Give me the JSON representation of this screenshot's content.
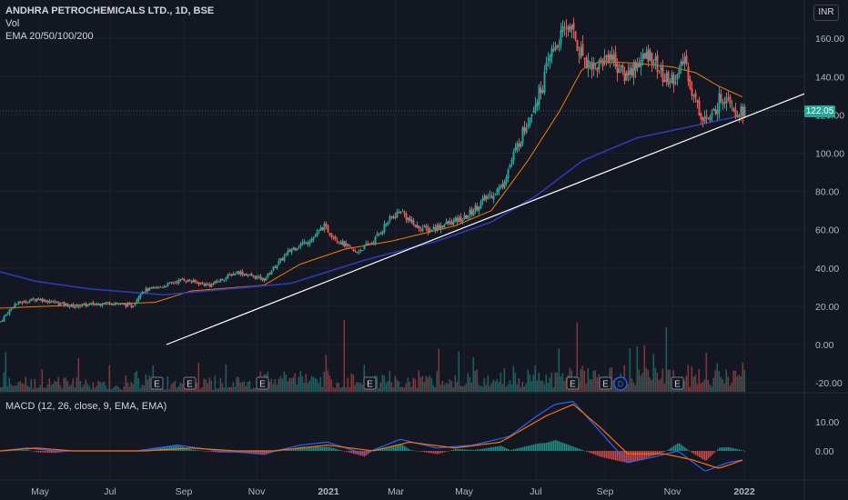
{
  "header": {
    "title": "ANDHRA PETROCHEMICALS LTD., 1D, BSE",
    "vol_label": "Vol",
    "ema_label": "EMA 20/50/100/200",
    "currency": "INR"
  },
  "last_price": "122.05",
  "macd_label": "MACD (12, 26, close, 9, EMA, EMA)",
  "colors": {
    "background": "#131722",
    "grid": "#1e222d",
    "up": "#26a69a",
    "down": "#ef5350",
    "ema_fast": "#f57c00",
    "ema_slow": "#2e39b8",
    "macd_line": "#2962ff",
    "signal_line": "#ff6d00",
    "trendline": "#ffffff"
  },
  "chart_data": [
    {
      "type": "candlestick",
      "price_axis_ticks": [
        "160.00",
        "140.00",
        "120.00",
        "100.00",
        "80.00",
        "60.00",
        "40.00",
        "20.00",
        "0.00",
        "-20.00"
      ],
      "ylim": [
        -20,
        170
      ],
      "time_axis_labels": [
        "May",
        "Jul",
        "Sep",
        "Nov",
        "2021",
        "Mar",
        "May",
        "Jul",
        "Sep",
        "Nov",
        "2022"
      ],
      "series": [
        {
          "kind": "close",
          "keyframes": [
            {
              "t": 0,
              "v": 12
            },
            {
              "t": 15,
              "v": 21
            },
            {
              "t": 40,
              "v": 24
            },
            {
              "t": 80,
              "v": 20
            },
            {
              "t": 120,
              "v": 22
            },
            {
              "t": 145,
              "v": 20
            },
            {
              "t": 155,
              "v": 28
            },
            {
              "t": 175,
              "v": 30
            },
            {
              "t": 200,
              "v": 34
            },
            {
              "t": 230,
              "v": 31
            },
            {
              "t": 260,
              "v": 38
            },
            {
              "t": 290,
              "v": 34
            },
            {
              "t": 300,
              "v": 40
            },
            {
              "t": 320,
              "v": 50
            },
            {
              "t": 345,
              "v": 56
            },
            {
              "t": 355,
              "v": 62
            },
            {
              "t": 370,
              "v": 55
            },
            {
              "t": 390,
              "v": 48
            },
            {
              "t": 410,
              "v": 54
            },
            {
              "t": 425,
              "v": 64
            },
            {
              "t": 440,
              "v": 70
            },
            {
              "t": 455,
              "v": 62
            },
            {
              "t": 470,
              "v": 60
            },
            {
              "t": 490,
              "v": 63
            },
            {
              "t": 510,
              "v": 66
            },
            {
              "t": 530,
              "v": 75
            },
            {
              "t": 550,
              "v": 82
            },
            {
              "t": 565,
              "v": 100
            },
            {
              "t": 580,
              "v": 118
            },
            {
              "t": 595,
              "v": 135
            },
            {
              "t": 605,
              "v": 152
            },
            {
              "t": 615,
              "v": 160
            },
            {
              "t": 625,
              "v": 168
            },
            {
              "t": 635,
              "v": 155
            },
            {
              "t": 645,
              "v": 148
            },
            {
              "t": 655,
              "v": 145
            },
            {
              "t": 670,
              "v": 152
            },
            {
              "t": 685,
              "v": 140
            },
            {
              "t": 700,
              "v": 147
            },
            {
              "t": 715,
              "v": 152
            },
            {
              "t": 730,
              "v": 138
            },
            {
              "t": 745,
              "v": 140
            },
            {
              "t": 752,
              "v": 150
            },
            {
              "t": 760,
              "v": 132
            },
            {
              "t": 770,
              "v": 120
            },
            {
              "t": 780,
              "v": 117
            },
            {
              "t": 790,
              "v": 128
            },
            {
              "t": 800,
              "v": 131
            },
            {
              "t": 808,
              "v": 122
            },
            {
              "t": 818,
              "v": 122
            }
          ]
        },
        {
          "kind": "ema_fast",
          "keyframes": [
            {
              "t": 0,
              "v": 19
            },
            {
              "t": 100,
              "v": 21
            },
            {
              "t": 170,
              "v": 22
            },
            {
              "t": 210,
              "v": 28
            },
            {
              "t": 290,
              "v": 31
            },
            {
              "t": 330,
              "v": 42
            },
            {
              "t": 380,
              "v": 50
            },
            {
              "t": 430,
              "v": 54
            },
            {
              "t": 500,
              "v": 62
            },
            {
              "t": 540,
              "v": 70
            },
            {
              "t": 580,
              "v": 96
            },
            {
              "t": 615,
              "v": 122
            },
            {
              "t": 640,
              "v": 144
            },
            {
              "t": 660,
              "v": 148
            },
            {
              "t": 700,
              "v": 147
            },
            {
              "t": 740,
              "v": 145
            },
            {
              "t": 765,
              "v": 142
            },
            {
              "t": 790,
              "v": 135
            },
            {
              "t": 818,
              "v": 129
            }
          ]
        },
        {
          "kind": "ema_slow",
          "keyframes": [
            {
              "t": 0,
              "v": 38
            },
            {
              "t": 40,
              "v": 33
            },
            {
              "t": 100,
              "v": 29
            },
            {
              "t": 180,
              "v": 26
            },
            {
              "t": 250,
              "v": 29
            },
            {
              "t": 320,
              "v": 32
            },
            {
              "t": 400,
              "v": 44
            },
            {
              "t": 480,
              "v": 54
            },
            {
              "t": 540,
              "v": 64
            },
            {
              "t": 590,
              "v": 78
            },
            {
              "t": 640,
              "v": 96
            },
            {
              "t": 700,
              "v": 108
            },
            {
              "t": 760,
              "v": 114
            },
            {
              "t": 818,
              "v": 120
            }
          ]
        },
        {
          "kind": "trendline",
          "points": [
            {
              "t": 183,
              "v": 0
            },
            {
              "t": 884,
              "v": 131
            }
          ]
        }
      ],
      "earnings_markers": [
        "E",
        "E",
        "E",
        "E",
        "E",
        "E",
        "E"
      ],
      "dividend_marker": "D"
    },
    {
      "type": "line",
      "name": "MACD (12, 26, close, 9, EMA, EMA)",
      "y_ticks": [
        "10.00",
        "0.00"
      ],
      "series": [
        {
          "kind": "macd",
          "keyframes": [
            {
              "t": 0,
              "v": 0
            },
            {
              "t": 30,
              "v": 1
            },
            {
              "t": 60,
              "v": 0
            },
            {
              "t": 150,
              "v": 0
            },
            {
              "t": 195,
              "v": 2
            },
            {
              "t": 240,
              "v": 0
            },
            {
              "t": 290,
              "v": -1
            },
            {
              "t": 330,
              "v": 2
            },
            {
              "t": 360,
              "v": 3
            },
            {
              "t": 400,
              "v": -1
            },
            {
              "t": 440,
              "v": 4
            },
            {
              "t": 480,
              "v": 1
            },
            {
              "t": 520,
              "v": 2
            },
            {
              "t": 560,
              "v": 5
            },
            {
              "t": 590,
              "v": 12
            },
            {
              "t": 610,
              "v": 16
            },
            {
              "t": 630,
              "v": 17
            },
            {
              "t": 650,
              "v": 10
            },
            {
              "t": 670,
              "v": 3
            },
            {
              "t": 690,
              "v": -4
            },
            {
              "t": 720,
              "v": -2
            },
            {
              "t": 745,
              "v": 0
            },
            {
              "t": 775,
              "v": -7
            },
            {
              "t": 800,
              "v": -4
            },
            {
              "t": 818,
              "v": -3
            }
          ]
        },
        {
          "kind": "signal",
          "keyframes": [
            {
              "t": 0,
              "v": 0
            },
            {
              "t": 40,
              "v": 1
            },
            {
              "t": 80,
              "v": 0
            },
            {
              "t": 160,
              "v": 0
            },
            {
              "t": 210,
              "v": 1
            },
            {
              "t": 260,
              "v": 0
            },
            {
              "t": 300,
              "v": 0
            },
            {
              "t": 360,
              "v": 2
            },
            {
              "t": 410,
              "v": 0
            },
            {
              "t": 450,
              "v": 3
            },
            {
              "t": 500,
              "v": 1
            },
            {
              "t": 550,
              "v": 3
            },
            {
              "t": 600,
              "v": 12
            },
            {
              "t": 630,
              "v": 16
            },
            {
              "t": 660,
              "v": 8
            },
            {
              "t": 690,
              "v": -1
            },
            {
              "t": 730,
              "v": -1
            },
            {
              "t": 760,
              "v": -3
            },
            {
              "t": 790,
              "v": -6
            },
            {
              "t": 818,
              "v": -3
            }
          ]
        }
      ]
    }
  ]
}
